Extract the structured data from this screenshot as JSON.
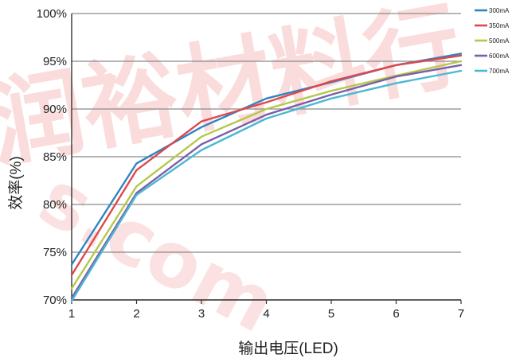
{
  "watermark": "润裕材料行",
  "watermark_sub": "s.com",
  "chart_data": {
    "type": "line",
    "title": "",
    "xlabel": "输出电压(LED)",
    "ylabel": "效率(%)",
    "x": [
      1,
      2,
      3,
      4,
      5,
      6,
      7
    ],
    "xlim": [
      1,
      7
    ],
    "ylim": [
      70,
      100
    ],
    "yticks": [
      70,
      75,
      80,
      85,
      90,
      95,
      100
    ],
    "ytick_labels": [
      "70%",
      "75%",
      "80%",
      "85%",
      "90%",
      "95%",
      "100%"
    ],
    "xtick_labels": [
      "1",
      "2",
      "3",
      "4",
      "5",
      "6",
      "7"
    ],
    "grid": "horizontal",
    "legend_position": "top-right",
    "series": [
      {
        "name": "300mA",
        "color": "#2e86c1",
        "values": [
          73.7,
          84.3,
          88.1,
          91.1,
          92.8,
          94.6,
          95.8
        ]
      },
      {
        "name": "350mA",
        "color": "#e0474c",
        "values": [
          72.6,
          83.6,
          88.7,
          90.7,
          92.9,
          94.6,
          95.6
        ]
      },
      {
        "name": "500mA",
        "color": "#b5c84a",
        "values": [
          71.2,
          81.9,
          87.1,
          90.0,
          91.9,
          93.5,
          95.0
        ]
      },
      {
        "name": "600mA",
        "color": "#7b5ea7",
        "values": [
          70.2,
          81.2,
          86.3,
          89.4,
          91.5,
          93.4,
          94.6
        ]
      },
      {
        "name": "700mA",
        "color": "#4bb8d4",
        "values": [
          69.9,
          81.0,
          85.7,
          89.0,
          91.1,
          92.7,
          94.0
        ]
      }
    ]
  }
}
